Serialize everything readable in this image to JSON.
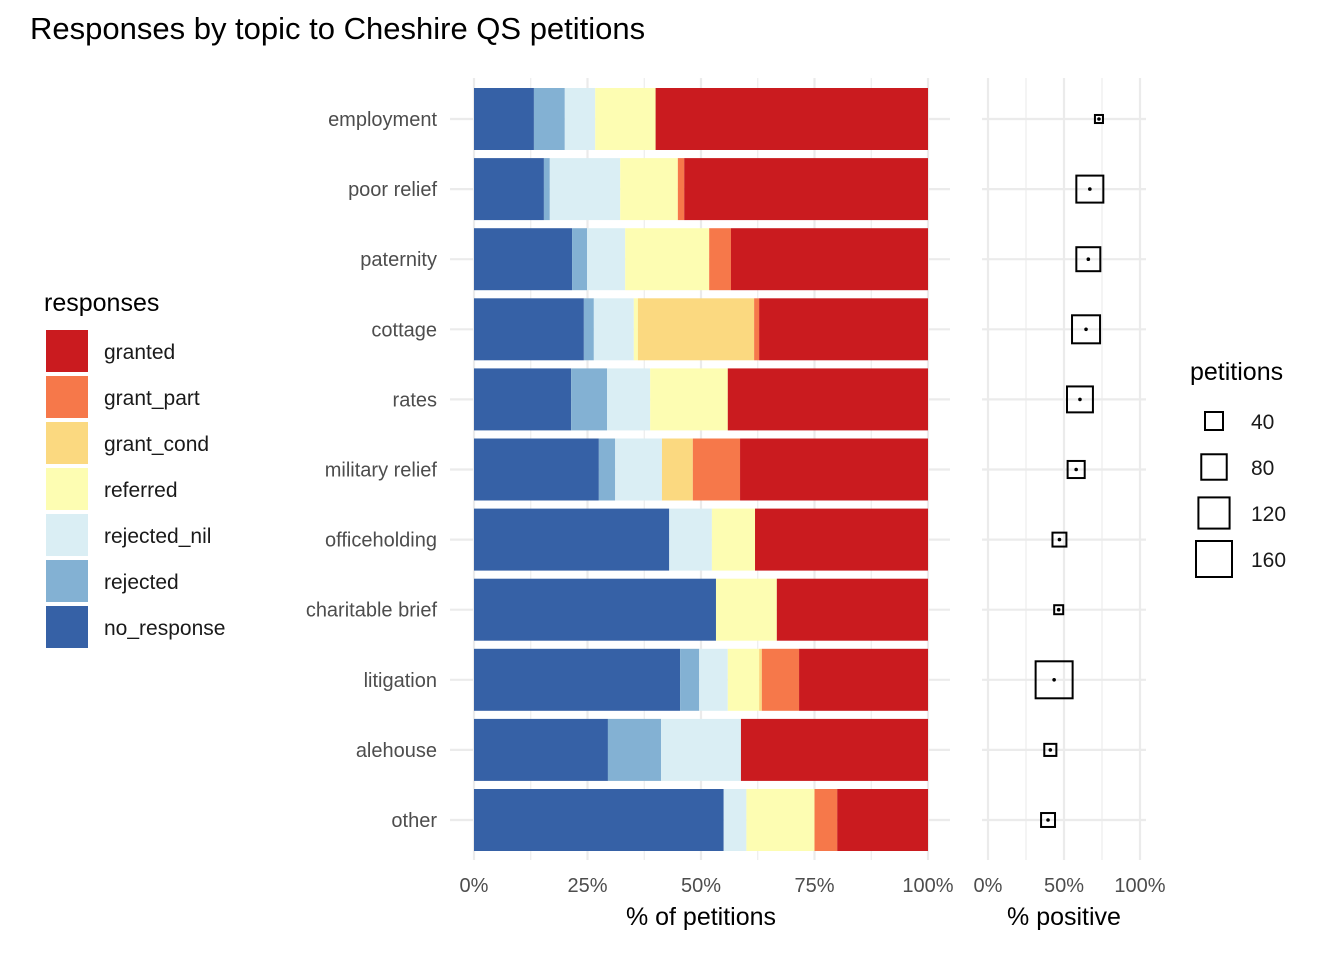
{
  "chart_data": [
    {
      "type": "bar",
      "orientation": "horizontal",
      "stacked": true,
      "title": "Responses by topic to Cheshire QS petitions",
      "xlabel": "% of petitions",
      "ylabel": "",
      "xlim": [
        0,
        100
      ],
      "x_ticks": [
        "0%",
        "25%",
        "50%",
        "75%",
        "100%"
      ],
      "categories": [
        "employment",
        "poor relief",
        "paternity",
        "cottage",
        "rates",
        "military relief",
        "officeholding",
        "charitable brief",
        "litigation",
        "alehouse",
        "other"
      ],
      "legend_title": "responses",
      "legend_position": "left",
      "grid": true,
      "series": [
        {
          "name": "no_response",
          "color": "#3661A6",
          "values": [
            13.2,
            15.4,
            21.6,
            24.2,
            21.4,
            27.5,
            43.0,
            53.3,
            45.4,
            29.5,
            55.0
          ]
        },
        {
          "name": "rejected",
          "color": "#83B1D3",
          "values": [
            6.8,
            1.3,
            3.3,
            2.2,
            7.9,
            3.6,
            0,
            0,
            4.2,
            11.7,
            0
          ]
        },
        {
          "name": "rejected_nil",
          "color": "#DAEEF4",
          "values": [
            6.7,
            15.5,
            8.4,
            8.8,
            9.5,
            10.3,
            9.4,
            0,
            6.3,
            17.6,
            5.0
          ]
        },
        {
          "name": "referred",
          "color": "#FDFDB2",
          "values": [
            13.3,
            12.7,
            18.5,
            0.9,
            17.1,
            0,
            9.5,
            13.4,
            6.9,
            0,
            15.0
          ]
        },
        {
          "name": "grant_cond",
          "color": "#FBD980",
          "values": [
            0,
            0,
            0,
            25.6,
            0,
            6.8,
            0,
            0,
            0.6,
            0,
            0
          ]
        },
        {
          "name": "grant_part",
          "color": "#F6784A",
          "values": [
            0,
            1.4,
            4.8,
            1.1,
            0,
            10.4,
            0,
            0,
            8.2,
            0,
            5.0
          ]
        },
        {
          "name": "granted",
          "color": "#CA1B1F",
          "values": [
            60.0,
            53.7,
            43.4,
            37.2,
            44.1,
            41.4,
            38.1,
            33.3,
            28.4,
            41.2,
            20.0
          ]
        }
      ]
    },
    {
      "type": "scatter",
      "xlabel": "% positive",
      "xlim": [
        0,
        100
      ],
      "x_ticks": [
        "0%",
        "50%",
        "100%"
      ],
      "categories": [
        "employment",
        "poor relief",
        "paternity",
        "cottage",
        "rates",
        "military relief",
        "officeholding",
        "charitable brief",
        "litigation",
        "alehouse",
        "other"
      ],
      "positive_pct": [
        73,
        67,
        66,
        64.5,
        60.5,
        58,
        47,
        46.5,
        43.5,
        41,
        39.5
      ],
      "petitions": [
        8,
        90,
        71,
        97,
        83,
        36,
        24,
        10,
        169,
        18,
        24
      ],
      "size_legend_title": "petitions",
      "size_legend": [
        40,
        80,
        120,
        160
      ],
      "size_legend_labels": [
        "40",
        "80",
        "120",
        "160"
      ],
      "grid": true
    }
  ]
}
